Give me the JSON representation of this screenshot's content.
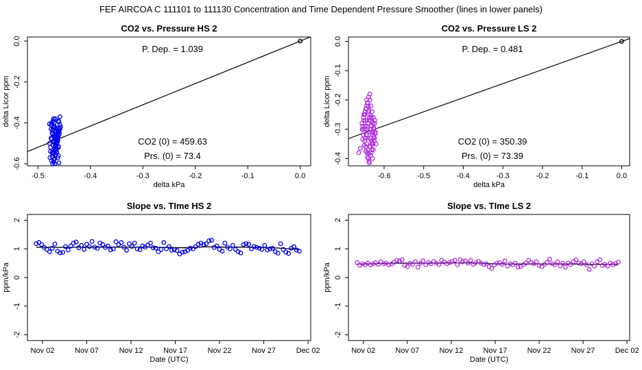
{
  "page_title": "FEF   AIRCOA C   111101 to 111130   Concentration and Time Dependent Pressure Smoother (lines in lower panels)",
  "colors": {
    "hs": "#0000ee",
    "ls": "#b030e0",
    "axis": "#000000"
  },
  "chart_data": [
    {
      "id": "hs_scatter",
      "type": "scatter",
      "title": "CO2 vs. Pressure HS 2",
      "xlabel": "delta kPa",
      "ylabel": "delta Licor ppm",
      "xlim": [
        -0.52,
        0.02
      ],
      "ylim": [
        -0.61,
        0.02
      ],
      "xticks": [
        -0.5,
        -0.4,
        -0.3,
        -0.2,
        -0.1,
        0.0
      ],
      "xtick_labels": [
        "-0.5",
        "-0.4",
        "-0.3",
        "-0.2",
        "-0.1",
        "0.0"
      ],
      "yticks": [
        0.0,
        -0.2,
        -0.4,
        -0.6
      ],
      "ytick_labels": [
        "0.0",
        "-0.2",
        "-0.4",
        "-0.6"
      ],
      "color_key": "hs",
      "fit_line": {
        "x": [
          -0.52,
          0.02
        ],
        "y": [
          -0.5403,
          0.0208
        ]
      },
      "annotations": {
        "p_dep": "P. Dep. = 1.039",
        "co2_0": "CO2 (0) = 459.63",
        "prs_0": "Prs. (0) = 73.4"
      },
      "points": {
        "x": [
          -0.478,
          -0.475,
          -0.472,
          -0.47,
          -0.468,
          -0.466,
          -0.464,
          -0.462,
          -0.46,
          -0.458,
          -0.476,
          -0.473,
          -0.471,
          -0.469,
          -0.467,
          -0.465,
          -0.463,
          -0.461,
          -0.459,
          -0.457,
          -0.477,
          -0.474,
          -0.472,
          -0.47,
          -0.468,
          -0.466,
          -0.464,
          -0.462,
          -0.46,
          -0.474,
          -0.471,
          -0.469,
          -0.467,
          -0.465,
          -0.463,
          -0.461,
          -0.476,
          -0.473,
          -0.47,
          -0.468,
          -0.466,
          -0.464,
          -0.462,
          -0.46,
          -0.458,
          -0.475,
          -0.472,
          -0.47,
          -0.468,
          -0.466,
          -0.464,
          -0.462,
          -0.46,
          -0.478,
          -0.475,
          -0.473,
          -0.471,
          -0.469,
          -0.467,
          -0.465,
          -0.463,
          -0.461,
          -0.472,
          -0.47,
          -0.468,
          -0.466,
          -0.464,
          -0.462,
          -0.46,
          -0.458,
          -0.474,
          -0.471,
          -0.469,
          -0.467,
          -0.465,
          -0.463,
          -0.461,
          -0.47,
          -0.468,
          -0.466,
          0.0
        ],
        "y": [
          -0.405,
          -0.43,
          -0.455,
          -0.38,
          -0.42,
          -0.47,
          -0.5,
          -0.44,
          -0.395,
          -0.37,
          -0.52,
          -0.545,
          -0.49,
          -0.46,
          -0.51,
          -0.535,
          -0.48,
          -0.56,
          -0.45,
          -0.42,
          -0.57,
          -0.585,
          -0.6,
          -0.55,
          -0.53,
          -0.505,
          -0.475,
          -0.45,
          -0.425,
          -0.4,
          -0.39,
          -0.415,
          -0.445,
          -0.465,
          -0.495,
          -0.515,
          -0.54,
          -0.565,
          -0.59,
          -0.575,
          -0.555,
          -0.525,
          -0.485,
          -0.46,
          -0.43,
          -0.41,
          -0.435,
          -0.465,
          -0.49,
          -0.515,
          -0.545,
          -0.57,
          -0.595,
          -0.5,
          -0.475,
          -0.45,
          -0.425,
          -0.4,
          -0.38,
          -0.44,
          -0.47,
          -0.52,
          -0.55,
          -0.58,
          -0.6,
          -0.53,
          -0.5,
          -0.47,
          -0.44,
          -0.41,
          -0.48,
          -0.51,
          -0.54,
          -0.56,
          -0.455,
          -0.43,
          -0.39,
          -0.42,
          -0.46,
          -0.5,
          0.0
        ]
      }
    },
    {
      "id": "ls_scatter",
      "type": "scatter",
      "title": "CO2 vs. Pressure LS 2",
      "xlabel": "delta kPa",
      "ylabel": "delta Licor ppm",
      "xlim": [
        -0.69,
        0.02
      ],
      "ylim": [
        -0.425,
        0.015
      ],
      "xticks": [
        -0.6,
        -0.5,
        -0.4,
        -0.3,
        -0.2,
        -0.1,
        0.0
      ],
      "xtick_labels": [
        "-0.6",
        "-0.5",
        "-0.4",
        "-0.3",
        "-0.2",
        "-0.1",
        "0.0"
      ],
      "yticks": [
        0.0,
        -0.1,
        -0.2,
        -0.3,
        -0.4
      ],
      "ytick_labels": [
        "0.0",
        "-0.1",
        "-0.2",
        "-0.3",
        "-0.4"
      ],
      "color_key": "ls",
      "fit_line": {
        "x": [
          -0.69,
          0.02
        ],
        "y": [
          -0.3319,
          0.0096
        ]
      },
      "annotations": {
        "p_dep": "P. Dep. = 0.481",
        "co2_0": "CO2 (0) = 350.39",
        "prs_0": "Prs. (0) = 73.39"
      },
      "points": {
        "x": [
          -0.655,
          -0.652,
          -0.649,
          -0.646,
          -0.643,
          -0.64,
          -0.637,
          -0.634,
          -0.631,
          -0.628,
          -0.625,
          -0.622,
          -0.654,
          -0.651,
          -0.648,
          -0.645,
          -0.642,
          -0.639,
          -0.636,
          -0.633,
          -0.63,
          -0.627,
          -0.624,
          -0.653,
          -0.65,
          -0.647,
          -0.644,
          -0.641,
          -0.638,
          -0.635,
          -0.632,
          -0.629,
          -0.626,
          -0.656,
          -0.652,
          -0.648,
          -0.644,
          -0.64,
          -0.636,
          -0.632,
          -0.628,
          -0.624,
          -0.62,
          -0.651,
          -0.647,
          -0.643,
          -0.639,
          -0.635,
          -0.631,
          -0.627,
          -0.623,
          -0.65,
          -0.646,
          -0.642,
          -0.638,
          -0.634,
          -0.63,
          -0.626,
          -0.622,
          -0.654,
          -0.65,
          -0.646,
          -0.642,
          -0.638,
          -0.634,
          -0.63,
          -0.626,
          -0.66,
          -0.664,
          -0.645,
          -0.641,
          -0.637,
          -0.633,
          -0.629,
          -0.625,
          -0.644,
          -0.64,
          -0.636,
          -0.632,
          -0.628,
          -0.649,
          -0.645,
          -0.641,
          -0.637,
          -0.633,
          -0.629,
          -0.648,
          -0.643,
          -0.639,
          -0.635,
          0.0
        ],
        "y": [
          -0.3,
          -0.32,
          -0.34,
          -0.36,
          -0.38,
          -0.4,
          -0.415,
          -0.39,
          -0.37,
          -0.35,
          -0.33,
          -0.31,
          -0.29,
          -0.27,
          -0.25,
          -0.23,
          -0.21,
          -0.19,
          -0.2,
          -0.22,
          -0.24,
          -0.26,
          -0.28,
          -0.3,
          -0.31,
          -0.33,
          -0.35,
          -0.37,
          -0.385,
          -0.36,
          -0.34,
          -0.32,
          -0.3,
          -0.28,
          -0.26,
          -0.24,
          -0.22,
          -0.24,
          -0.27,
          -0.29,
          -0.31,
          -0.33,
          -0.35,
          -0.25,
          -0.27,
          -0.29,
          -0.31,
          -0.33,
          -0.35,
          -0.37,
          -0.27,
          -0.25,
          -0.23,
          -0.21,
          -0.235,
          -0.255,
          -0.275,
          -0.295,
          -0.315,
          -0.335,
          -0.355,
          -0.375,
          -0.395,
          -0.41,
          -0.39,
          -0.345,
          -0.325,
          -0.365,
          -0.38,
          -0.3,
          -0.28,
          -0.26,
          -0.3,
          -0.32,
          -0.34,
          -0.2,
          -0.22,
          -0.18,
          -0.26,
          -0.28,
          -0.3,
          -0.32,
          -0.33,
          -0.36,
          -0.38,
          -0.4,
          -0.29,
          -0.27,
          -0.24,
          -0.31,
          0.0
        ]
      }
    },
    {
      "id": "hs_slope",
      "type": "line",
      "title": "Slope vs. TIme HS 2",
      "xlabel": "Date (UTC)",
      "ylabel": "ppm/kPa",
      "xlim": [
        -0.7,
        31.3
      ],
      "ylim": [
        -2.2,
        2.2
      ],
      "xticks": [
        1,
        6,
        11,
        16,
        21,
        26,
        31
      ],
      "xtick_labels": [
        "Nov 02",
        "Nov 07",
        "Nov 12",
        "Nov 17",
        "Nov 22",
        "Nov 27",
        "Dec 02"
      ],
      "yticks": [
        -2,
        -1,
        0,
        1,
        2
      ],
      "ytick_labels": [
        "-2",
        "-1",
        "0",
        "1",
        "2"
      ],
      "color_key": "hs",
      "series_points": {
        "x": [
          0.3,
          0.6,
          0.9,
          1.2,
          1.5,
          1.8,
          2.1,
          2.4,
          2.7,
          3.0,
          3.3,
          3.6,
          3.9,
          4.2,
          4.5,
          4.8,
          5.1,
          5.4,
          5.7,
          6.0,
          6.3,
          6.6,
          6.9,
          7.2,
          7.5,
          7.8,
          8.1,
          8.4,
          8.7,
          9.0,
          9.3,
          9.6,
          9.9,
          10.2,
          10.5,
          10.8,
          11.1,
          11.4,
          11.7,
          12.0,
          12.3,
          12.6,
          12.9,
          13.2,
          13.5,
          13.8,
          14.1,
          14.4,
          14.7,
          15.0,
          15.3,
          15.6,
          15.9,
          16.2,
          16.5,
          16.8,
          17.1,
          17.4,
          17.7,
          18.0,
          18.3,
          18.6,
          18.9,
          19.2,
          19.5,
          19.8,
          20.1,
          20.4,
          20.7,
          21.0,
          21.3,
          21.6,
          21.9,
          22.2,
          22.5,
          22.8,
          23.1,
          23.4,
          23.7,
          24.0,
          24.3,
          24.6,
          24.9,
          25.2,
          25.5,
          25.8,
          26.1,
          26.4,
          26.7,
          27.0,
          27.3,
          27.6,
          27.9,
          28.2,
          28.5,
          28.8,
          29.1,
          29.4,
          29.7,
          30.0
        ],
        "y": [
          1.18,
          1.22,
          1.15,
          1.05,
          0.98,
          0.9,
          1.02,
          1.17,
          0.92,
          0.86,
          0.88,
          1.08,
          0.96,
          1.1,
          1.2,
          1.24,
          1.04,
          1.12,
          0.98,
          1.16,
          1.08,
          1.26,
          1.06,
          1.02,
          1.2,
          1.15,
          1.05,
          1.1,
          0.96,
          1.0,
          1.25,
          1.15,
          1.22,
          1.06,
          0.95,
          1.18,
          1.08,
          1.2,
          1.0,
          0.97,
          1.1,
          1.06,
          1.13,
          1.2,
          1.04,
          1.02,
          0.9,
          0.98,
          1.22,
          1.0,
          1.08,
          0.95,
          0.97,
          0.94,
          0.82,
          0.88,
          0.9,
          0.95,
          1.02,
          1.0,
          1.08,
          1.16,
          1.2,
          1.15,
          1.18,
          1.28,
          1.3,
          1.05,
          1.1,
          0.98,
          0.92,
          1.2,
          1.06,
          1.0,
          1.12,
          0.98,
          0.9,
          0.86,
          1.15,
          1.18,
          1.16,
          1.0,
          1.08,
          1.05,
          1.02,
          0.98,
          1.12,
          0.96,
          1.0,
          1.02,
          0.9,
          0.85,
          1.18,
          0.98,
          0.88,
          0.84,
          1.02,
          1.08,
          0.96,
          0.92
        ],
        "line_y": [
          1.05,
          1.06,
          1.06,
          1.05,
          1.05,
          1.06,
          1.06,
          1.05,
          1.05,
          1.05,
          1.05,
          1.05,
          1.05,
          1.05,
          1.06,
          1.06,
          1.06,
          1.06,
          1.06,
          1.06,
          1.06,
          1.06,
          1.06,
          1.06,
          1.06,
          1.06,
          1.06,
          1.06,
          1.06,
          1.06,
          1.06,
          1.06,
          1.06,
          1.06,
          1.06,
          1.06,
          1.06,
          1.06,
          1.06,
          1.06,
          1.06,
          1.06,
          1.06,
          1.06,
          1.06,
          1.06,
          1.05,
          1.05,
          1.05,
          1.05,
          1.05,
          1.05,
          1.04,
          1.04,
          1.04,
          1.04,
          1.04,
          1.04,
          1.04,
          1.05,
          1.05,
          1.06,
          1.06,
          1.07,
          1.07,
          1.07,
          1.07,
          1.07,
          1.07,
          1.07,
          1.06,
          1.06,
          1.06,
          1.06,
          1.06,
          1.06,
          1.06,
          1.06,
          1.06,
          1.06,
          1.06,
          1.05,
          1.05,
          1.05,
          1.05,
          1.05,
          1.05,
          1.04,
          1.04,
          1.04,
          1.03,
          1.03,
          1.02,
          1.02,
          1.01,
          1.0,
          1.0,
          0.99,
          0.99,
          0.98
        ]
      }
    },
    {
      "id": "ls_slope",
      "type": "line",
      "title": "Slope vs. TIme LS 2",
      "xlabel": "Date (UTC)",
      "ylabel": "ppm/kPa",
      "xlim": [
        -0.7,
        31.3
      ],
      "ylim": [
        -2.2,
        2.2
      ],
      "xticks": [
        1,
        6,
        11,
        16,
        21,
        26,
        31
      ],
      "xtick_labels": [
        "Nov 02",
        "Nov 07",
        "Nov 12",
        "Nov 17",
        "Nov 22",
        "Nov 27",
        "Dec 02"
      ],
      "yticks": [
        -2,
        -1,
        0,
        1,
        2
      ],
      "ytick_labels": [
        "-2",
        "-1",
        "0",
        "1",
        "2"
      ],
      "color_key": "ls",
      "series_points": {
        "x": [
          0.3,
          0.6,
          0.9,
          1.2,
          1.5,
          1.8,
          2.1,
          2.4,
          2.7,
          3.0,
          3.3,
          3.6,
          3.9,
          4.2,
          4.5,
          4.8,
          5.1,
          5.4,
          5.7,
          6.0,
          6.3,
          6.6,
          6.9,
          7.2,
          7.5,
          7.8,
          8.1,
          8.4,
          8.7,
          9.0,
          9.3,
          9.6,
          9.9,
          10.2,
          10.5,
          10.8,
          11.1,
          11.4,
          11.7,
          12.0,
          12.3,
          12.6,
          12.9,
          13.2,
          13.5,
          13.8,
          14.1,
          14.4,
          14.7,
          15.0,
          15.3,
          15.6,
          15.9,
          16.2,
          16.5,
          16.8,
          17.1,
          17.4,
          17.7,
          18.0,
          18.3,
          18.6,
          18.9,
          19.2,
          19.5,
          19.8,
          20.1,
          20.4,
          20.7,
          21.0,
          21.3,
          21.6,
          21.9,
          22.2,
          22.5,
          22.8,
          23.1,
          23.4,
          23.7,
          24.0,
          24.3,
          24.6,
          24.9,
          25.2,
          25.5,
          25.8,
          26.1,
          26.4,
          26.7,
          27.0,
          27.3,
          27.6,
          27.9,
          28.2,
          28.5,
          28.8,
          29.1,
          29.4,
          29.7,
          30.0
        ],
        "y": [
          0.52,
          0.42,
          0.48,
          0.45,
          0.5,
          0.44,
          0.48,
          0.52,
          0.46,
          0.55,
          0.48,
          0.5,
          0.44,
          0.47,
          0.53,
          0.6,
          0.58,
          0.62,
          0.42,
          0.38,
          0.5,
          0.46,
          0.55,
          0.36,
          0.5,
          0.58,
          0.44,
          0.52,
          0.48,
          0.56,
          0.5,
          0.45,
          0.6,
          0.54,
          0.48,
          0.52,
          0.56,
          0.6,
          0.45,
          0.62,
          0.55,
          0.58,
          0.5,
          0.6,
          0.46,
          0.52,
          0.56,
          0.5,
          0.45,
          0.48,
          0.38,
          0.32,
          0.44,
          0.5,
          0.52,
          0.46,
          0.58,
          0.4,
          0.48,
          0.44,
          0.5,
          0.36,
          0.38,
          0.45,
          0.5,
          0.6,
          0.52,
          0.48,
          0.55,
          0.42,
          0.38,
          0.46,
          0.52,
          0.64,
          0.48,
          0.45,
          0.55,
          0.4,
          0.5,
          0.36,
          0.5,
          0.45,
          0.56,
          0.62,
          0.5,
          0.48,
          0.55,
          0.44,
          0.28,
          0.48,
          0.4,
          0.55,
          0.62,
          0.42,
          0.46,
          0.4,
          0.5,
          0.45,
          0.48,
          0.54
        ],
        "line_y": [
          0.47,
          0.47,
          0.47,
          0.47,
          0.48,
          0.48,
          0.48,
          0.48,
          0.49,
          0.49,
          0.49,
          0.49,
          0.5,
          0.5,
          0.5,
          0.5,
          0.5,
          0.5,
          0.5,
          0.5,
          0.5,
          0.5,
          0.5,
          0.5,
          0.5,
          0.5,
          0.5,
          0.5,
          0.5,
          0.5,
          0.5,
          0.5,
          0.5,
          0.51,
          0.51,
          0.51,
          0.51,
          0.51,
          0.51,
          0.51,
          0.51,
          0.51,
          0.51,
          0.51,
          0.5,
          0.5,
          0.5,
          0.5,
          0.49,
          0.49,
          0.48,
          0.48,
          0.48,
          0.48,
          0.48,
          0.48,
          0.47,
          0.47,
          0.47,
          0.47,
          0.47,
          0.47,
          0.47,
          0.47,
          0.47,
          0.47,
          0.47,
          0.47,
          0.47,
          0.47,
          0.47,
          0.47,
          0.47,
          0.47,
          0.47,
          0.47,
          0.47,
          0.47,
          0.47,
          0.47,
          0.47,
          0.47,
          0.47,
          0.47,
          0.47,
          0.47,
          0.46,
          0.46,
          0.46,
          0.46,
          0.46,
          0.46,
          0.46,
          0.46,
          0.46,
          0.46,
          0.46,
          0.46,
          0.46,
          0.46
        ]
      }
    }
  ]
}
